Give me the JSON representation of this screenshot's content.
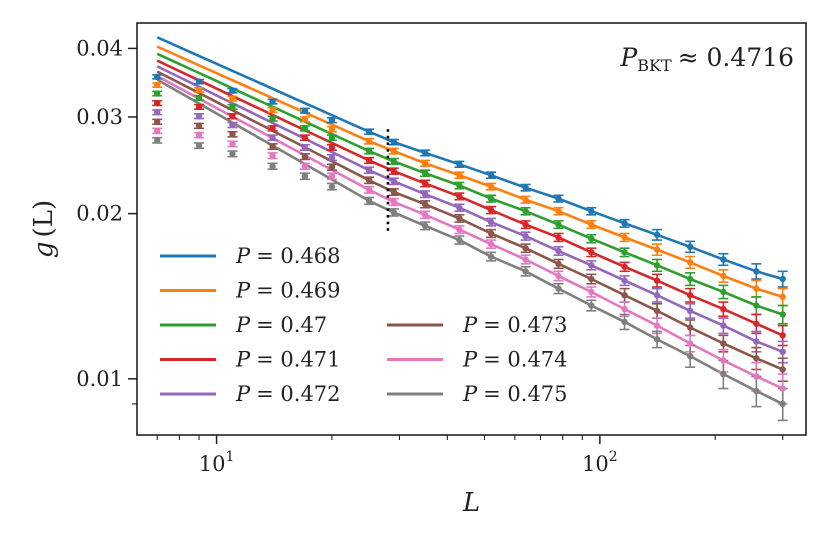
{
  "chart_data": {
    "type": "scatter",
    "xscale": "log",
    "yscale": "log",
    "xlim": [
      6.2,
      345
    ],
    "ylim": [
      0.0079,
      0.0445
    ],
    "xlabel_main": "L",
    "ylabel_main": "g",
    "ylabel_arg": "(L)",
    "x_ticks": [
      {
        "value": 10,
        "base": "10",
        "exp": "1"
      },
      {
        "value": 100,
        "base": "10",
        "exp": "2"
      }
    ],
    "y_ticks": [
      {
        "value": 0.01,
        "label": "0.01"
      },
      {
        "value": 0.02,
        "label": "0.02"
      },
      {
        "value": 0.03,
        "label": "0.03"
      },
      {
        "value": 0.04,
        "label": "0.04"
      }
    ],
    "vline_x": 28,
    "vline_range": [
      0.0185,
      0.0285
    ],
    "fit_start_index": 6,
    "annotation": {
      "lhs": "P",
      "sub": "BKT",
      "rhs": "≈ 0.4716"
    },
    "x": [
      7,
      9,
      11,
      14,
      17,
      20,
      25,
      29,
      35,
      43,
      52,
      64,
      78,
      95,
      116,
      141,
      172,
      210,
      256,
      300
    ],
    "series": [
      {
        "name": "P = 0.468",
        "color": "#1f77b4",
        "fit_start": 0.0419,
        "fit_slope": -0.386,
        "values": [
          0.0355,
          0.0348,
          0.0335,
          0.032,
          0.0308,
          0.0296,
          0.0282,
          0.027,
          0.0258,
          0.0246,
          0.0235,
          0.0223,
          0.0213,
          0.0202,
          0.0192,
          0.0183,
          0.0174,
          0.0165,
          0.0157,
          0.0152
        ],
        "errors": [
          0.0003,
          0.0003,
          0.0003,
          0.0003,
          0.0003,
          0.0003,
          0.0003,
          0.0003,
          0.0003,
          0.0003,
          0.0003,
          0.0003,
          0.0003,
          0.0003,
          0.0003,
          0.0004,
          0.0004,
          0.0004,
          0.0005,
          0.0005
        ]
      },
      {
        "name": "P = 0.469",
        "color": "#ff7f0e",
        "fit_start": 0.0403,
        "fit_slope": -0.411,
        "values": [
          0.0343,
          0.0336,
          0.0324,
          0.0309,
          0.0297,
          0.0285,
          0.0271,
          0.026,
          0.0247,
          0.0235,
          0.0224,
          0.0212,
          0.0202,
          0.0191,
          0.0181,
          0.0172,
          0.0163,
          0.0154,
          0.0146,
          0.0141
        ],
        "errors": [
          0.0003,
          0.0003,
          0.0003,
          0.0003,
          0.0003,
          0.0003,
          0.0003,
          0.0003,
          0.0003,
          0.0003,
          0.0003,
          0.0003,
          0.0003,
          0.0003,
          0.0003,
          0.0004,
          0.0004,
          0.0004,
          0.0005,
          0.0005
        ]
      },
      {
        "name": "P = 0.47",
        "color": "#2ca02c",
        "fit_start": 0.0391,
        "fit_slope": -0.435,
        "values": [
          0.0331,
          0.0325,
          0.0313,
          0.0298,
          0.0286,
          0.0275,
          0.026,
          0.0249,
          0.0237,
          0.0225,
          0.0213,
          0.0202,
          0.0191,
          0.018,
          0.017,
          0.0161,
          0.0152,
          0.0144,
          0.0136,
          0.0131
        ],
        "errors": [
          0.0003,
          0.0003,
          0.0003,
          0.0003,
          0.0003,
          0.0003,
          0.0003,
          0.0003,
          0.0003,
          0.0003,
          0.0003,
          0.0003,
          0.0003,
          0.0003,
          0.0003,
          0.0004,
          0.0004,
          0.0004,
          0.0005,
          0.0005
        ]
      },
      {
        "name": "P = 0.471",
        "color": "#d62728",
        "fit_start": 0.038,
        "fit_slope": -0.461,
        "values": [
          0.0318,
          0.0313,
          0.0301,
          0.0286,
          0.0275,
          0.0264,
          0.025,
          0.0239,
          0.0227,
          0.0215,
          0.0203,
          0.0191,
          0.0181,
          0.017,
          0.016,
          0.0151,
          0.0142,
          0.0134,
          0.0126,
          0.012
        ],
        "errors": [
          0.0003,
          0.0003,
          0.0003,
          0.0003,
          0.0003,
          0.0003,
          0.0003,
          0.0003,
          0.0003,
          0.0003,
          0.0003,
          0.0003,
          0.0003,
          0.0003,
          0.0003,
          0.0004,
          0.0004,
          0.0004,
          0.0005,
          0.0005
        ]
      },
      {
        "name": "P = 0.472",
        "color": "#9467bd",
        "fit_start": 0.0371,
        "fit_slope": -0.487,
        "values": [
          0.0306,
          0.0301,
          0.029,
          0.0275,
          0.0264,
          0.0253,
          0.024,
          0.0229,
          0.0217,
          0.0205,
          0.0193,
          0.0182,
          0.0171,
          0.0161,
          0.0151,
          0.0142,
          0.0133,
          0.0125,
          0.0117,
          0.0112
        ],
        "errors": [
          0.0003,
          0.0003,
          0.0003,
          0.0003,
          0.0003,
          0.0003,
          0.0003,
          0.0003,
          0.0003,
          0.0003,
          0.0003,
          0.0003,
          0.0003,
          0.0003,
          0.0003,
          0.0004,
          0.0004,
          0.0004,
          0.0005,
          0.0005
        ]
      },
      {
        "name": "P = 0.473",
        "color": "#8c564b",
        "fit_start": 0.0363,
        "fit_slope": -0.513,
        "values": [
          0.0294,
          0.0289,
          0.0279,
          0.0265,
          0.0254,
          0.0243,
          0.023,
          0.0219,
          0.0208,
          0.0196,
          0.0184,
          0.0173,
          0.0162,
          0.0152,
          0.0142,
          0.0133,
          0.0124,
          0.0116,
          0.0109,
          0.0104
        ],
        "errors": [
          0.0003,
          0.0003,
          0.0003,
          0.0003,
          0.0003,
          0.0003,
          0.0003,
          0.0003,
          0.0003,
          0.0003,
          0.0003,
          0.0003,
          0.0003,
          0.0003,
          0.0004,
          0.0004,
          0.0004,
          0.0004,
          0.0005,
          0.0005
        ]
      },
      {
        "name": "P = 0.474",
        "color": "#e377c2",
        "fit_start": 0.0356,
        "fit_slope": -0.54,
        "values": [
          0.0283,
          0.0278,
          0.0268,
          0.0255,
          0.0244,
          0.0234,
          0.0221,
          0.021,
          0.0199,
          0.0187,
          0.0176,
          0.0165,
          0.0154,
          0.0144,
          0.0134,
          0.0125,
          0.0116,
          0.0108,
          0.0101,
          0.0096
        ],
        "errors": [
          0.0003,
          0.0003,
          0.0003,
          0.0003,
          0.0003,
          0.0003,
          0.0003,
          0.0003,
          0.0003,
          0.0003,
          0.0003,
          0.0003,
          0.0003,
          0.0003,
          0.0004,
          0.0004,
          0.0004,
          0.0005,
          0.0006,
          0.0006
        ]
      },
      {
        "name": "P = 0.475",
        "color": "#7f7f7f",
        "fit_start": 0.0351,
        "fit_slope": -0.568,
        "values": [
          0.0272,
          0.0266,
          0.0257,
          0.0244,
          0.0234,
          0.0224,
          0.0211,
          0.0201,
          0.019,
          0.0179,
          0.0167,
          0.0157,
          0.0146,
          0.0136,
          0.0127,
          0.0118,
          0.011,
          0.0102,
          0.0095,
          0.009
        ],
        "errors": [
          0.0003,
          0.0003,
          0.0003,
          0.0003,
          0.0003,
          0.0003,
          0.0003,
          0.0003,
          0.0003,
          0.0003,
          0.0003,
          0.0003,
          0.0003,
          0.0003,
          0.0004,
          0.0004,
          0.0005,
          0.0006,
          0.0006,
          0.0006
        ]
      }
    ],
    "legend": {
      "placement": "lower-left",
      "columns": 2
    }
  }
}
